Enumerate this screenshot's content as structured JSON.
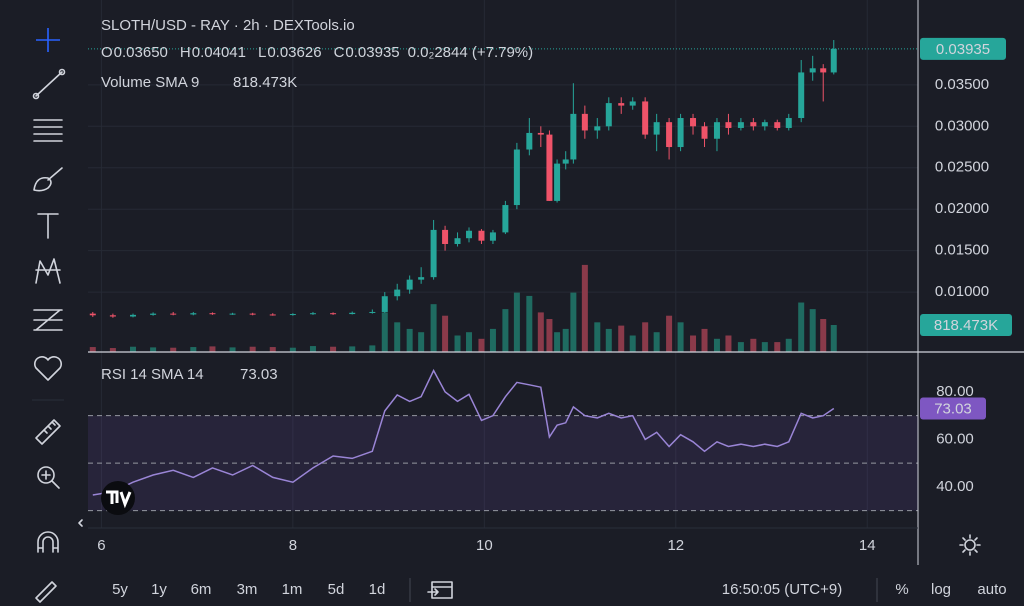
{
  "header": {
    "title": "SLOTH/USD - RAY · 2h · DEXTools.io",
    "ohlc": [
      {
        "key": "O",
        "value": "0.03650"
      },
      {
        "key": "H",
        "value": "0.04041"
      },
      {
        "key": "L",
        "value": "0.03626"
      },
      {
        "key": "C",
        "value": "0.03935"
      }
    ],
    "change": "0.0₂2844 (+7.79%)",
    "volume_label": "Volume SMA 9",
    "volume_value": "818.473K"
  },
  "chart_data": [
    {
      "type": "candlestick",
      "x": [
        5.91,
        6.12,
        6.33,
        6.54,
        6.75,
        6.96,
        7.16,
        7.37,
        7.58,
        7.79,
        8,
        8.21,
        8.42,
        8.62,
        8.83,
        8.96,
        9.09,
        9.22,
        9.34,
        9.47,
        9.59,
        9.72,
        9.84,
        9.97,
        10.09,
        10.22,
        10.34,
        10.47,
        10.59,
        10.68,
        10.76,
        10.85,
        10.93,
        11.05,
        11.18,
        11.3,
        11.43,
        11.55,
        11.68,
        11.8,
        11.93,
        12.05,
        12.18,
        12.3,
        12.43,
        12.55,
        12.68,
        12.81,
        12.93,
        13.06,
        13.18,
        13.31,
        13.43,
        13.54,
        13.65
      ],
      "open": [
        0.0074,
        0.0072,
        0.00705,
        0.00725,
        0.0074,
        0.0073,
        0.00745,
        0.00735,
        0.0074,
        0.0073,
        0.00725,
        0.00735,
        0.00745,
        0.00735,
        0.0075,
        0.0076,
        0.0095,
        0.0103,
        0.0115,
        0.0118,
        0.0175,
        0.0158,
        0.0165,
        0.0174,
        0.0162,
        0.0172,
        0.0205,
        0.0272,
        0.0292,
        0.029,
        0.021,
        0.0255,
        0.026,
        0.0315,
        0.0295,
        0.03,
        0.0328,
        0.0325,
        0.033,
        0.029,
        0.0305,
        0.0275,
        0.031,
        0.03,
        0.0285,
        0.0305,
        0.0298,
        0.0305,
        0.03,
        0.0305,
        0.0298,
        0.031,
        0.0365,
        0.037,
        0.0365
      ],
      "high": [
        0.0076,
        0.0074,
        0.0074,
        0.00755,
        0.0076,
        0.0076,
        0.00755,
        0.0075,
        0.0075,
        0.00745,
        0.00745,
        0.0076,
        0.00755,
        0.00765,
        0.0079,
        0.01,
        0.011,
        0.012,
        0.013,
        0.0187,
        0.018,
        0.0172,
        0.0178,
        0.0176,
        0.0175,
        0.021,
        0.028,
        0.031,
        0.03,
        0.0295,
        0.026,
        0.027,
        0.0352,
        0.0325,
        0.031,
        0.0335,
        0.0335,
        0.0335,
        0.0335,
        0.0315,
        0.031,
        0.0315,
        0.0315,
        0.0305,
        0.031,
        0.0315,
        0.031,
        0.031,
        0.0308,
        0.0308,
        0.0315,
        0.038,
        0.0385,
        0.0375,
        0.04041
      ],
      "low": [
        0.007,
        0.0069,
        0.00695,
        0.00715,
        0.0072,
        0.0072,
        0.00725,
        0.00725,
        0.0072,
        0.00715,
        0.00715,
        0.00725,
        0.00725,
        0.0073,
        0.0074,
        0.0075,
        0.009,
        0.0098,
        0.011,
        0.0115,
        0.015,
        0.0155,
        0.016,
        0.0158,
        0.0158,
        0.017,
        0.02,
        0.0265,
        0.0275,
        0.021,
        0.0208,
        0.0248,
        0.0255,
        0.0285,
        0.0285,
        0.0295,
        0.0315,
        0.032,
        0.0285,
        0.027,
        0.026,
        0.027,
        0.029,
        0.0275,
        0.027,
        0.029,
        0.0295,
        0.0295,
        0.0295,
        0.0295,
        0.0295,
        0.0305,
        0.0355,
        0.033,
        0.03626
      ],
      "close": [
        0.0072,
        0.00705,
        0.00725,
        0.0074,
        0.0073,
        0.00745,
        0.00735,
        0.0074,
        0.0073,
        0.00725,
        0.00735,
        0.00745,
        0.00735,
        0.0075,
        0.0076,
        0.0095,
        0.0103,
        0.0115,
        0.0118,
        0.0175,
        0.0158,
        0.0165,
        0.0174,
        0.0162,
        0.0172,
        0.0205,
        0.0272,
        0.0292,
        0.029,
        0.021,
        0.0255,
        0.026,
        0.0315,
        0.0295,
        0.03,
        0.0328,
        0.0325,
        0.033,
        0.029,
        0.0305,
        0.0275,
        0.031,
        0.03,
        0.0285,
        0.0305,
        0.0298,
        0.0305,
        0.03,
        0.0305,
        0.0298,
        0.031,
        0.0365,
        0.037,
        0.0365,
        0.03935
      ],
      "volume": [
        150000,
        120000,
        160000,
        140000,
        130000,
        150000,
        170000,
        140000,
        160000,
        150000,
        130000,
        180000,
        160000,
        170000,
        200000,
        1200000,
        900000,
        700000,
        600000,
        1450000,
        1100000,
        500000,
        600000,
        400000,
        700000,
        1300000,
        1800000,
        1700000,
        1200000,
        1000000,
        600000,
        700000,
        1800000,
        2640000,
        900000,
        700000,
        800000,
        500000,
        900000,
        600000,
        1100000,
        900000,
        500000,
        700000,
        400000,
        500000,
        300000,
        400000,
        300000,
        300000,
        400000,
        1500000,
        1300000,
        1000000,
        818473
      ],
      "volume_lim": [
        0,
        10670000
      ],
      "xlim": [
        5.86,
        14.53
      ],
      "xticks": [
        6,
        8,
        10,
        12,
        14
      ],
      "ylim": [
        0.00277,
        0.04524
      ],
      "yticks": [
        {
          "value": 0.01,
          "label": "0.01000"
        },
        {
          "value": 0.015,
          "label": "0.01500"
        },
        {
          "value": 0.02,
          "label": "0.02000"
        },
        {
          "value": 0.025,
          "label": "0.02500"
        },
        {
          "value": 0.03,
          "label": "0.03000"
        },
        {
          "value": 0.035,
          "label": "0.03500"
        }
      ],
      "grid": true,
      "up_color": "#26a69a",
      "down_color": "#ef5369",
      "volume_up_color": "#1f6b61",
      "volume_down_color": "#8a3a4a"
    },
    {
      "type": "line",
      "title": "RSI 14 SMA 14",
      "x": [
        5.91,
        6.12,
        6.33,
        6.54,
        6.75,
        6.96,
        7.16,
        7.37,
        7.58,
        7.79,
        8,
        8.21,
        8.42,
        8.62,
        8.83,
        8.96,
        9.09,
        9.22,
        9.34,
        9.47,
        9.59,
        9.72,
        9.84,
        9.97,
        10.09,
        10.22,
        10.34,
        10.47,
        10.59,
        10.68,
        10.76,
        10.85,
        10.93,
        11.05,
        11.18,
        11.3,
        11.43,
        11.55,
        11.68,
        11.8,
        11.93,
        12.05,
        12.18,
        12.3,
        12.43,
        12.55,
        12.68,
        12.81,
        12.93,
        13.06,
        13.18,
        13.31,
        13.43,
        13.54,
        13.65
      ],
      "values": [
        36.6,
        38,
        42,
        45,
        47,
        44,
        48,
        45,
        49,
        44,
        42,
        48,
        53,
        52,
        55,
        72,
        78.7,
        76,
        78,
        89,
        80,
        76,
        79,
        68,
        70,
        78,
        84,
        83,
        82,
        61,
        66,
        67,
        73.7,
        70,
        69,
        71,
        69,
        70,
        60,
        63,
        57,
        62,
        59,
        55,
        59,
        57,
        58,
        57,
        58,
        57,
        59,
        71,
        69,
        70,
        73.03
      ],
      "xlim": [
        5.86,
        14.53
      ],
      "ylim": [
        22.7,
        96.8
      ],
      "yticks": [
        {
          "value": 40,
          "label": "40.00"
        },
        {
          "value": 60,
          "label": "60.00"
        },
        {
          "value": 80,
          "label": "80.00"
        }
      ],
      "bands": [
        70,
        50,
        30
      ],
      "color": "#9a85d6",
      "band_color": "#7e57c2"
    }
  ],
  "bottom_bar": {
    "ranges": [
      "5y",
      "1y",
      "6m",
      "3m",
      "1m",
      "5d",
      "1d"
    ],
    "clock": "16:50:05 (UTC+9)",
    "percent": "%",
    "log": "log",
    "auto": "auto"
  }
}
